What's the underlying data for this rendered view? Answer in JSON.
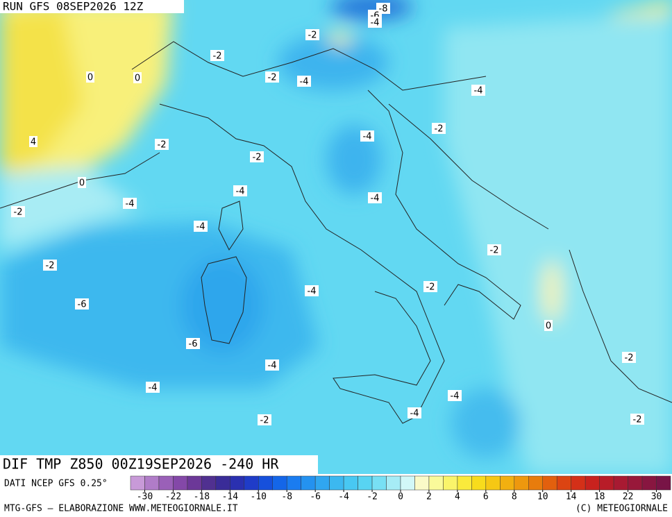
{
  "header": {
    "run": "RUN GFS 08SEP2026 12Z"
  },
  "map": {
    "title": "DIF TMP Z850 00Z19SEP2026 -240 HR",
    "contour_labels": [
      -8,
      -6,
      -4,
      -2,
      -2,
      0,
      0,
      -2,
      -4,
      -4,
      -2,
      -4,
      4,
      -2,
      -2,
      0,
      -4,
      -4,
      -4,
      -2,
      -4,
      -2,
      -2,
      -2,
      -4,
      -6,
      0,
      -6,
      -4,
      -2,
      -4,
      -4,
      -4,
      -2,
      -2
    ]
  },
  "footer": {
    "source": "DATI NCEP GFS 0.25°",
    "credit": "MTG-GFS — ELABORAZIONE WWW.METEOGIORNALE.IT",
    "copyright": "(C) METEOGIORNALE"
  },
  "colorbar": {
    "ticks": [
      -30,
      -22,
      -18,
      -14,
      -10,
      -8,
      -6,
      -4,
      -2,
      0,
      2,
      4,
      6,
      8,
      10,
      14,
      18,
      22,
      30
    ],
    "colors": [
      "#c89ad8",
      "#b07cc8",
      "#9a60b8",
      "#8448a8",
      "#6c3898",
      "#503090",
      "#3a2c98",
      "#2a30b0",
      "#1f3cc8",
      "#1650dc",
      "#1466e8",
      "#1a7cf0",
      "#2492f0",
      "#30a6f0",
      "#3cb8f0",
      "#48c8f2",
      "#58d4f2",
      "#78e0f4",
      "#a6ecf6",
      "#d2f8f8",
      "#fafac8",
      "#fafa9a",
      "#faf46a",
      "#faea3c",
      "#f8dc1c",
      "#f6c814",
      "#f2b010",
      "#ee980e",
      "#e87c0c",
      "#e2600e",
      "#dc4412",
      "#d43018",
      "#c8221e",
      "#b81c28",
      "#a81a32",
      "#98183a",
      "#881640",
      "#781446"
    ]
  }
}
